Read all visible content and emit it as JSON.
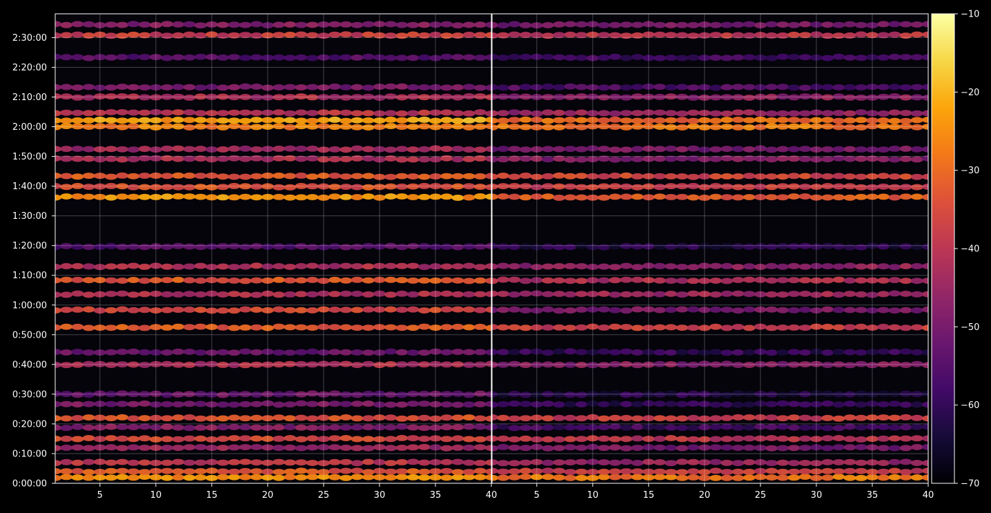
{
  "chart_data": {
    "type": "heatmap",
    "title": "",
    "xlabel": "",
    "ylabel": "",
    "panels": [
      {
        "xlim": [
          1,
          40
        ],
        "xticks": [
          5,
          10,
          15,
          20,
          25,
          30,
          35,
          40
        ]
      },
      {
        "xlim": [
          1,
          40
        ],
        "xticks": [
          5,
          10,
          15,
          20,
          25,
          30,
          35,
          40
        ]
      }
    ],
    "x_tick_labels": [
      "5",
      "10",
      "15",
      "20",
      "25",
      "30",
      "35",
      "40"
    ],
    "ylim_seconds": [
      0,
      9480
    ],
    "y_ticks_seconds": [
      0,
      600,
      1200,
      1800,
      2400,
      3000,
      3600,
      4200,
      4800,
      5400,
      6000,
      6600,
      7200,
      7800,
      8400,
      9000
    ],
    "y_tick_labels": [
      "0:00:00",
      "0:10:00",
      "0:20:00",
      "0:30:00",
      "0:40:00",
      "0:50:00",
      "1:00:00",
      "1:10:00",
      "1:20:00",
      "1:30:00",
      "1:40:00",
      "1:50:00",
      "2:00:00",
      "2:10:00",
      "2:20:00",
      "2:30:00"
    ],
    "grid": true,
    "colorbar": {
      "range": [
        -70,
        -10
      ],
      "ticks": [
        -70,
        -60,
        -50,
        -40,
        -30,
        -20,
        -10
      ],
      "tick_labels": [
        "−70",
        "−60",
        "−50",
        "−40",
        "−30",
        "−20",
        "−10"
      ],
      "colormap": "inferno"
    },
    "bands": [
      {
        "t": 120,
        "level_a": -25,
        "level_b": -28
      },
      {
        "t": 240,
        "level_a": -33,
        "level_b": -38
      },
      {
        "t": 420,
        "level_a": -40,
        "level_b": -45
      },
      {
        "t": 720,
        "level_a": -45,
        "level_b": -50
      },
      {
        "t": 900,
        "level_a": -36,
        "level_b": -40
      },
      {
        "t": 1130,
        "level_a": -48,
        "level_b": -58
      },
      {
        "t": 1320,
        "level_a": -34,
        "level_b": -38
      },
      {
        "t": 1600,
        "level_a": -50,
        "level_b": -60
      },
      {
        "t": 1800,
        "level_a": -52,
        "level_b": -62
      },
      {
        "t": 2400,
        "level_a": -42,
        "level_b": -48
      },
      {
        "t": 2650,
        "level_a": -52,
        "level_b": -60
      },
      {
        "t": 3150,
        "level_a": -32,
        "level_b": -38
      },
      {
        "t": 3500,
        "level_a": -36,
        "level_b": -50
      },
      {
        "t": 3820,
        "level_a": -42,
        "level_b": -44
      },
      {
        "t": 4100,
        "level_a": -33,
        "level_b": -42
      },
      {
        "t": 4380,
        "level_a": -42,
        "level_b": -46
      },
      {
        "t": 4780,
        "level_a": -55,
        "level_b": -62
      },
      {
        "t": 5780,
        "level_a": -24,
        "level_b": -32
      },
      {
        "t": 5990,
        "level_a": -34,
        "level_b": -38
      },
      {
        "t": 6200,
        "level_a": -33,
        "level_b": -36
      },
      {
        "t": 6550,
        "level_a": -42,
        "level_b": -48
      },
      {
        "t": 6750,
        "level_a": -44,
        "level_b": -50
      },
      {
        "t": 7200,
        "level_a": -27,
        "level_b": -28
      },
      {
        "t": 7330,
        "level_a": -22,
        "level_b": -30
      },
      {
        "t": 7480,
        "level_a": -40,
        "level_b": -45
      },
      {
        "t": 7800,
        "level_a": -42,
        "level_b": -46
      },
      {
        "t": 8000,
        "level_a": -50,
        "level_b": -56
      },
      {
        "t": 8600,
        "level_a": -55,
        "level_b": -58
      },
      {
        "t": 9050,
        "level_a": -38,
        "level_b": -40
      },
      {
        "t": 9260,
        "level_a": -48,
        "level_b": -50
      }
    ]
  }
}
